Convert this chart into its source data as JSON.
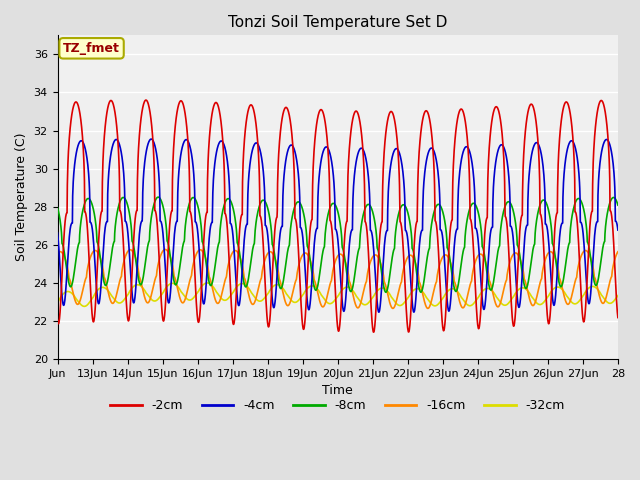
{
  "title": "Tonzi Soil Temperature Set D",
  "xlabel": "Time",
  "ylabel": "Soil Temperature (C)",
  "ylim": [
    20,
    37
  ],
  "yticks": [
    20,
    22,
    24,
    26,
    28,
    30,
    32,
    34,
    36
  ],
  "background_color": "#e0e0e0",
  "plot_bg_color": "#f0f0f0",
  "legend_labels": [
    "-2cm",
    "-4cm",
    "-8cm",
    "-16cm",
    "-32cm"
  ],
  "legend_colors": [
    "#dd0000",
    "#0000cc",
    "#00aa00",
    "#ff8800",
    "#dddd00"
  ],
  "annotation_text": "TZ_fmet",
  "annotation_bg": "#ffffcc",
  "annotation_border": "#aaaa00",
  "x_start_day": 12,
  "x_end_day": 28,
  "xtick_days": [
    12,
    13,
    14,
    15,
    16,
    17,
    18,
    19,
    20,
    21,
    22,
    23,
    24,
    25,
    26,
    27,
    28
  ],
  "xtick_labels": [
    "Jun",
    "13Jun",
    "14Jun",
    "15Jun",
    "16Jun",
    "17Jun",
    "18Jun",
    "19Jun",
    "20Jun",
    "21Jun",
    "22Jun",
    "23Jun",
    "24Jun",
    "25Jun",
    "26Jun",
    "27Jun",
    "28"
  ],
  "line_width": 1.2,
  "n_points": 2000
}
